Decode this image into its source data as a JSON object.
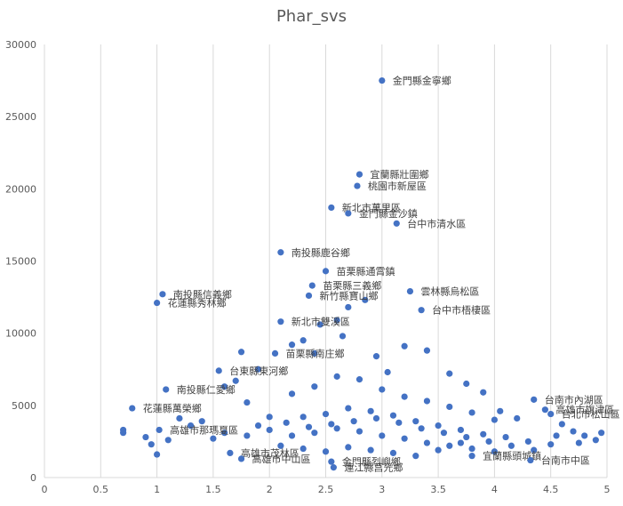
{
  "chart_data": {
    "type": "scatter",
    "title": "Phar_svs",
    "xlabel": "",
    "ylabel": "",
    "xlim": [
      0,
      5
    ],
    "ylim": [
      0,
      30000
    ],
    "x_ticks": [
      0,
      0.5,
      1,
      1.5,
      2,
      2.5,
      3,
      3.5,
      4,
      4.5,
      5
    ],
    "y_ticks": [
      0,
      5000,
      10000,
      15000,
      20000,
      25000,
      30000
    ],
    "x_tick_labels": [
      "0",
      "0.5",
      "1",
      "1.5",
      "2",
      "2.5",
      "3",
      "3.5",
      "4",
      "4.5",
      "5"
    ],
    "y_tick_labels": [
      "0",
      "5000",
      "10000",
      "15000",
      "20000",
      "25000",
      "30000"
    ],
    "grid": "vertical",
    "marker_color": "#4472C4",
    "labeled_points": [
      {
        "x": 3.0,
        "y": 27500,
        "label": "金門縣金寧鄉"
      },
      {
        "x": 2.8,
        "y": 21000,
        "label": "宜蘭縣壯圍鄉"
      },
      {
        "x": 2.78,
        "y": 20200,
        "label": "桃園市新屋區"
      },
      {
        "x": 2.55,
        "y": 18700,
        "label": "新北市萬里區"
      },
      {
        "x": 2.7,
        "y": 18300,
        "label": "金門縣金沙鎮"
      },
      {
        "x": 3.13,
        "y": 17600,
        "label": "台中市清水區"
      },
      {
        "x": 2.1,
        "y": 15600,
        "label": "南投縣鹿谷鄉"
      },
      {
        "x": 2.5,
        "y": 14300,
        "label": "苗栗縣通霄鎮"
      },
      {
        "x": 2.38,
        "y": 13300,
        "label": "苗栗縣三義鄉"
      },
      {
        "x": 3.25,
        "y": 12900,
        "label": "雲林縣烏松區"
      },
      {
        "x": 2.35,
        "y": 12600,
        "label": "新竹縣寶山鄉"
      },
      {
        "x": 1.05,
        "y": 12700,
        "label": "南投縣信義鄉"
      },
      {
        "x": 1.0,
        "y": 12100,
        "label": "花蓮縣秀林鄉"
      },
      {
        "x": 3.35,
        "y": 11600,
        "label": "台中市梧棲區"
      },
      {
        "x": 2.1,
        "y": 10800,
        "label": "新北市雙溪區"
      },
      {
        "x": 2.05,
        "y": 8600,
        "label": "苗栗縣南庄鄉"
      },
      {
        "x": 1.55,
        "y": 7400,
        "label": "台東縣東河鄉"
      },
      {
        "x": 1.08,
        "y": 6100,
        "label": "南投縣仁愛鄉"
      },
      {
        "x": 0.78,
        "y": 4800,
        "label": "花蓮縣萬榮鄉"
      },
      {
        "x": 4.35,
        "y": 5400,
        "label": "台南市內湖區"
      },
      {
        "x": 4.45,
        "y": 4700,
        "label": "高雄市旗津區"
      },
      {
        "x": 4.5,
        "y": 4400,
        "label": "台北市松山區"
      },
      {
        "x": 1.02,
        "y": 3300,
        "label": "高雄市那瑪夏區"
      },
      {
        "x": 1.65,
        "y": 1700,
        "label": "高雄市茂林區"
      },
      {
        "x": 1.75,
        "y": 1300,
        "label": "高雄市中山區"
      },
      {
        "x": 2.55,
        "y": 1100,
        "label": "金門縣烈嶼鄉"
      },
      {
        "x": 2.57,
        "y": 700,
        "label": "連江縣莒光鄉"
      },
      {
        "x": 3.8,
        "y": 1500,
        "label": "宜蘭縣頭城鎮"
      },
      {
        "x": 4.32,
        "y": 1200,
        "label": "台南市中區"
      }
    ],
    "other_points": [
      [
        0.7,
        3300
      ],
      [
        0.7,
        3100
      ],
      [
        0.9,
        2800
      ],
      [
        0.95,
        2300
      ],
      [
        1.0,
        1600
      ],
      [
        1.1,
        2600
      ],
      [
        1.2,
        4100
      ],
      [
        1.3,
        3600
      ],
      [
        1.4,
        3900
      ],
      [
        1.6,
        6300
      ],
      [
        1.7,
        6700
      ],
      [
        1.75,
        8700
      ],
      [
        1.8,
        5200
      ],
      [
        1.9,
        7500
      ],
      [
        2.0,
        3300
      ],
      [
        2.2,
        9200
      ],
      [
        2.3,
        9500
      ],
      [
        2.4,
        8600
      ],
      [
        2.45,
        10600
      ],
      [
        2.6,
        10900
      ],
      [
        2.65,
        9800
      ],
      [
        2.7,
        11800
      ],
      [
        2.85,
        12300
      ],
      [
        2.95,
        8400
      ],
      [
        3.05,
        7300
      ],
      [
        3.2,
        9100
      ],
      [
        3.4,
        8800
      ],
      [
        3.6,
        7200
      ],
      [
        3.75,
        6500
      ],
      [
        3.9,
        5900
      ],
      [
        4.05,
        4600
      ],
      [
        4.2,
        4100
      ],
      [
        4.6,
        3700
      ],
      [
        4.7,
        3200
      ],
      [
        4.8,
        2900
      ],
      [
        4.9,
        2600
      ],
      [
        4.95,
        3100
      ],
      [
        2.2,
        5800
      ],
      [
        2.4,
        6300
      ],
      [
        2.6,
        7000
      ],
      [
        2.8,
        6800
      ],
      [
        3.0,
        6100
      ],
      [
        3.2,
        5600
      ],
      [
        3.4,
        5300
      ],
      [
        3.6,
        4900
      ],
      [
        3.8,
        4500
      ],
      [
        4.0,
        4000
      ],
      [
        2.3,
        4200
      ],
      [
        2.5,
        4400
      ],
      [
        2.7,
        4800
      ],
      [
        2.9,
        4600
      ],
      [
        3.1,
        4300
      ],
      [
        3.3,
        3900
      ],
      [
        3.5,
        3600
      ],
      [
        3.7,
        3300
      ],
      [
        3.9,
        3000
      ],
      [
        4.1,
        2800
      ],
      [
        4.3,
        2500
      ],
      [
        4.5,
        2300
      ],
      [
        2.2,
        2900
      ],
      [
        2.4,
        3100
      ],
      [
        2.6,
        3400
      ],
      [
        2.8,
        3200
      ],
      [
        3.0,
        2900
      ],
      [
        3.2,
        2700
      ],
      [
        3.4,
        2400
      ],
      [
        3.6,
        2200
      ],
      [
        3.8,
        2000
      ],
      [
        4.0,
        1800
      ],
      [
        2.1,
        2200
      ],
      [
        2.3,
        2000
      ],
      [
        2.5,
        1800
      ],
      [
        2.7,
        2100
      ],
      [
        2.9,
        1900
      ],
      [
        3.1,
        1700
      ],
      [
        3.3,
        1500
      ],
      [
        3.5,
        1900
      ],
      [
        3.7,
        2400
      ],
      [
        1.5,
        2700
      ],
      [
        1.6,
        3100
      ],
      [
        1.8,
        2900
      ],
      [
        1.9,
        3600
      ],
      [
        2.0,
        4200
      ],
      [
        2.15,
        3800
      ],
      [
        2.35,
        3500
      ],
      [
        2.55,
        3700
      ],
      [
        2.75,
        3900
      ],
      [
        2.95,
        4100
      ],
      [
        3.15,
        3800
      ],
      [
        3.35,
        3400
      ],
      [
        3.55,
        3100
      ],
      [
        3.75,
        2800
      ],
      [
        3.95,
        2500
      ],
      [
        4.15,
        2200
      ],
      [
        4.35,
        1900
      ],
      [
        4.55,
        2900
      ],
      [
        4.75,
        2400
      ]
    ]
  }
}
